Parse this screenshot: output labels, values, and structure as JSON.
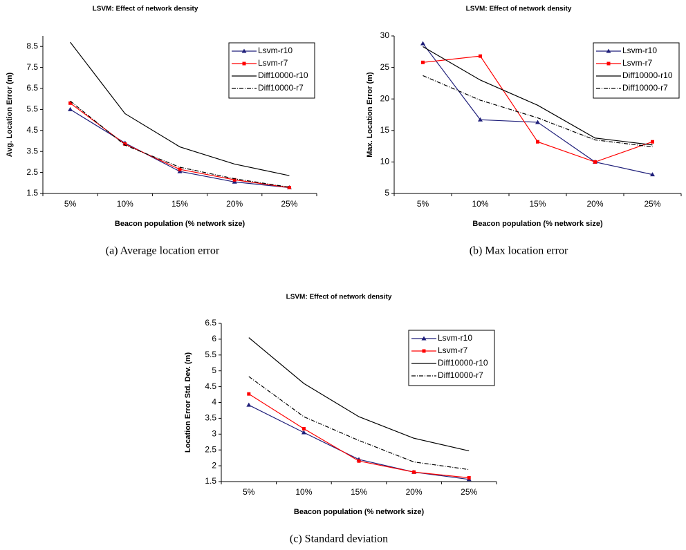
{
  "chart_data": [
    {
      "type": "line",
      "title": "LSVM: Effect of network density",
      "caption": "(a)  Average location error",
      "xlabel": "Beacon population (% network size)",
      "ylabel": "Avg. Location Error (m)",
      "categories": [
        "5%",
        "10%",
        "15%",
        "20%",
        "25%"
      ],
      "ylim": [
        1.5,
        9.0
      ],
      "yticks": [
        1.5,
        2.5,
        3.5,
        4.5,
        5.5,
        6.5,
        7.5,
        8.5
      ],
      "legend": "upper right",
      "series": [
        {
          "name": "Lsvm-r10",
          "color": "#1f1f7a",
          "marker": "triangle",
          "dash": "solid",
          "values": [
            5.5,
            3.9,
            2.55,
            2.05,
            1.78
          ]
        },
        {
          "name": "Lsvm-r7",
          "color": "#ff0000",
          "marker": "square",
          "dash": "solid",
          "values": [
            5.8,
            3.85,
            2.65,
            2.15,
            1.78
          ]
        },
        {
          "name": "Diff10000-r10",
          "color": "#000000",
          "marker": "none",
          "dash": "solid",
          "values": [
            8.7,
            5.3,
            3.72,
            2.9,
            2.35
          ]
        },
        {
          "name": "Diff10000-r7",
          "color": "#000000",
          "marker": "none",
          "dash": "dashdot",
          "values": [
            5.9,
            3.8,
            2.75,
            2.2,
            1.8
          ]
        }
      ]
    },
    {
      "type": "line",
      "title": "LSVM: Effect of network density",
      "caption": "(b)  Max location error",
      "xlabel": "Beacon population (% network size)",
      "ylabel": "Max. Location Error (m)",
      "categories": [
        "5%",
        "10%",
        "15%",
        "20%",
        "25%"
      ],
      "ylim": [
        5,
        30
      ],
      "yticks": [
        5,
        10,
        15,
        20,
        25,
        30
      ],
      "legend": "upper right",
      "series": [
        {
          "name": "Lsvm-r10",
          "color": "#1f1f7a",
          "marker": "triangle",
          "dash": "solid",
          "values": [
            28.8,
            16.7,
            16.3,
            10,
            8
          ]
        },
        {
          "name": "Lsvm-r7",
          "color": "#ff0000",
          "marker": "square",
          "dash": "solid",
          "values": [
            25.8,
            26.8,
            13.2,
            10,
            13.2
          ]
        },
        {
          "name": "Diff10000-r10",
          "color": "#000000",
          "marker": "none",
          "dash": "solid",
          "values": [
            28.3,
            23,
            19,
            13.8,
            12.7
          ]
        },
        {
          "name": "Diff10000-r7",
          "color": "#000000",
          "marker": "none",
          "dash": "dashdot",
          "values": [
            23.7,
            19.8,
            17,
            13.5,
            12.4
          ]
        }
      ]
    },
    {
      "type": "line",
      "title": "LSVM: Effect of network density",
      "caption": "(c)  Standard deviation",
      "xlabel": "Beacon population (% network size)",
      "ylabel": "Location Error Std. Dev. (m)",
      "categories": [
        "5%",
        "10%",
        "15%",
        "20%",
        "25%"
      ],
      "ylim": [
        1.5,
        6.5
      ],
      "yticks": [
        1.5,
        2,
        2.5,
        3,
        3.5,
        4,
        4.5,
        5,
        5.5,
        6,
        6.5
      ],
      "legend": "upper right",
      "series": [
        {
          "name": "Lsvm-r10",
          "color": "#1f1f7a",
          "marker": "triangle",
          "dash": "solid",
          "values": [
            3.92,
            3.05,
            2.2,
            1.8,
            1.57
          ]
        },
        {
          "name": "Lsvm-r7",
          "color": "#ff0000",
          "marker": "square",
          "dash": "solid",
          "values": [
            4.27,
            3.17,
            2.15,
            1.8,
            1.62
          ]
        },
        {
          "name": "Diff10000-r10",
          "color": "#000000",
          "marker": "none",
          "dash": "solid",
          "values": [
            6.05,
            4.6,
            3.55,
            2.87,
            2.47
          ]
        },
        {
          "name": "Diff10000-r7",
          "color": "#000000",
          "marker": "none",
          "dash": "dashdot",
          "values": [
            4.82,
            3.55,
            2.8,
            2.12,
            1.88
          ]
        }
      ]
    }
  ]
}
